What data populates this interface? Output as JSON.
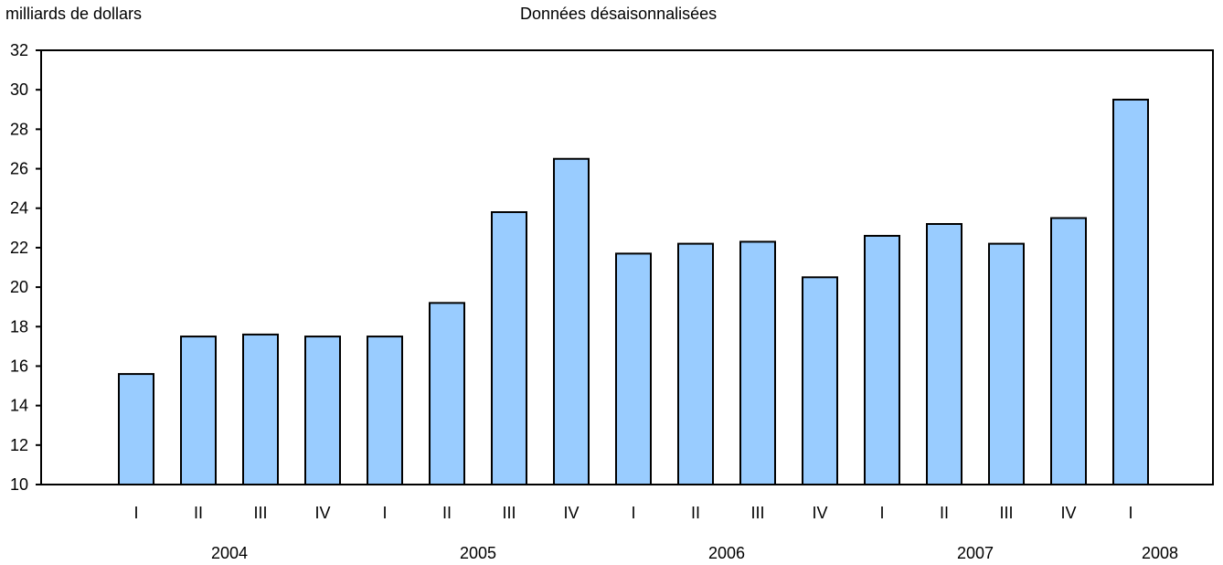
{
  "chart_data": {
    "type": "bar",
    "ylabel": "milliards de dollars",
    "subtitle": "Données désaisonnalisées",
    "ylim": [
      10,
      32
    ],
    "yticks": [
      "10",
      "12",
      "14",
      "16",
      "18",
      "20",
      "22",
      "24",
      "26",
      "28",
      "30",
      "32"
    ],
    "categories": [
      "I",
      "II",
      "III",
      "IV",
      "I",
      "II",
      "III",
      "IV",
      "I",
      "II",
      "III",
      "IV",
      "I",
      "II",
      "III",
      "IV",
      "I"
    ],
    "years": [
      "2004",
      "2005",
      "2006",
      "2007",
      "2008"
    ],
    "values": [
      15.6,
      17.5,
      17.6,
      17.5,
      17.5,
      19.2,
      23.8,
      26.5,
      21.7,
      22.2,
      22.3,
      20.5,
      22.6,
      23.2,
      22.2,
      23.5,
      29.5
    ],
    "bar_color": "#99ccff",
    "grid": false,
    "legend": "none"
  }
}
